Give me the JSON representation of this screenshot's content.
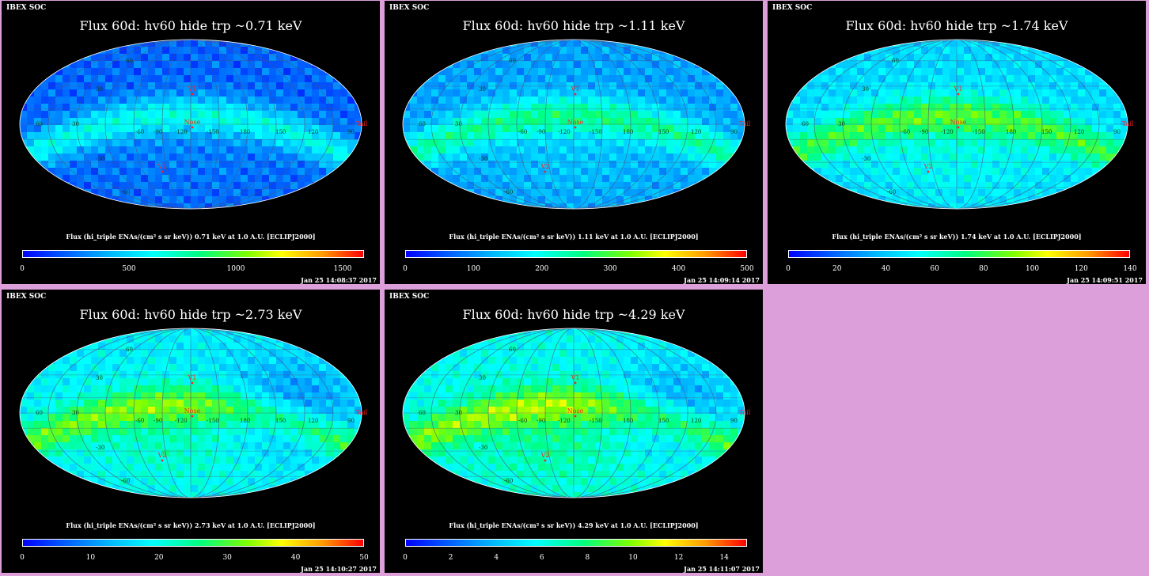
{
  "panels": [
    {
      "header": "IBEX SOC",
      "title": "Flux   60d: hv60 hide trp ~0.71 keV",
      "unit_label": "Flux (hi_triple ENAs/(cm² s sr keV))  0.71 keV at 1.0 A.U. [ECLIPJ2000]",
      "colorbar_max": 1600,
      "colorbar_ticks": [
        "0",
        "500",
        "1000",
        "1500"
      ],
      "colorbar_tick_values": [
        0,
        500,
        1000,
        1500
      ],
      "timestamp": "Jan 25 14:08:37 2017",
      "map_level": 0.18
    },
    {
      "header": "IBEX SOC",
      "title": "Flux   60d: hv60 hide trp ~1.11 keV",
      "unit_label": "Flux (hi_triple ENAs/(cm² s sr keV))  1.11 keV at 1.0 A.U. [ECLIPJ2000]",
      "colorbar_max": 500,
      "colorbar_ticks": [
        "0",
        "100",
        "200",
        "300",
        "400",
        "500"
      ],
      "colorbar_tick_values": [
        0,
        100,
        200,
        300,
        400,
        500
      ],
      "timestamp": "Jan 25 14:09:14 2017",
      "map_level": 0.3
    },
    {
      "header": "IBEX SOC",
      "title": "Flux   60d: hv60 hide trp ~1.74 keV",
      "unit_label": "Flux (hi_triple ENAs/(cm² s sr keV))  1.74 keV at 1.0 A.U. [ECLIPJ2000]",
      "colorbar_max": 140,
      "colorbar_ticks": [
        "0",
        "20",
        "40",
        "60",
        "80",
        "100",
        "120",
        "140"
      ],
      "colorbar_tick_values": [
        0,
        20,
        40,
        60,
        80,
        100,
        120,
        140
      ],
      "timestamp": "Jan 25 14:09:51 2017",
      "map_level": 0.42
    },
    {
      "header": "IBEX SOC",
      "title": "Flux   60d: hv60 hide trp ~2.73 keV",
      "unit_label": "Flux (hi_triple ENAs/(cm² s sr keV))  2.73 keV at 1.0 A.U. [ECLIPJ2000]",
      "colorbar_max": 50,
      "colorbar_ticks": [
        "0",
        "10",
        "20",
        "30",
        "40",
        "50"
      ],
      "colorbar_tick_values": [
        0,
        10,
        20,
        30,
        40,
        50
      ],
      "timestamp": "Jan 25 14:10:27 2017",
      "map_level": 0.48
    },
    {
      "header": "IBEX SOC",
      "title": "Flux   60d: hv60 hide trp ~4.29 keV",
      "unit_label": "Flux (hi_triple ENAs/(cm² s sr keV))  4.29 keV at 1.0 A.U. [ECLIPJ2000]",
      "colorbar_max": 15,
      "colorbar_ticks": [
        "0",
        "2",
        "4",
        "6",
        "8",
        "10",
        "12",
        "14"
      ],
      "colorbar_tick_values": [
        0,
        2,
        4,
        6,
        8,
        10,
        12,
        14
      ],
      "timestamp": "Jan 25 14:11:07 2017",
      "map_level": 0.52
    }
  ],
  "map_markers": {
    "v1": "V1",
    "v2": "V2",
    "nose": "Nose",
    "tail": "Tail"
  },
  "map_grid_labels": {
    "lon": [
      "-60",
      "-90",
      "-120",
      "-150",
      "180",
      "150",
      "120",
      "90",
      "60",
      "30"
    ],
    "lat": [
      "60",
      "30",
      "-30",
      "-60"
    ],
    "pole_label": "0"
  },
  "colors": {
    "background": "#dc9fda",
    "panel": "#000000",
    "marker": "#ff2020",
    "grid_label": "#00a000"
  }
}
